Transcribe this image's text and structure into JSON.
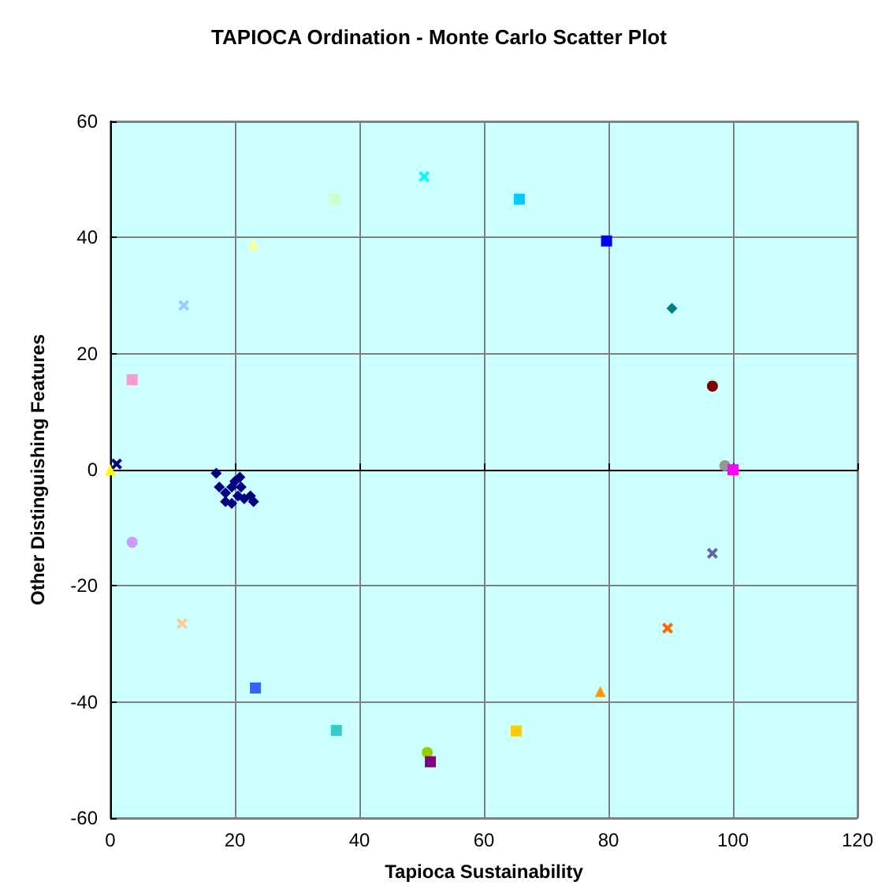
{
  "chart_data": {
    "type": "scatter",
    "title": "TAPIOCA Ordination - Monte Carlo Scatter Plot",
    "xlabel": "Tapioca Sustainability",
    "ylabel": "Other Distinguishing Features",
    "xlim": [
      0,
      120
    ],
    "xticks": [
      0,
      20,
      40,
      60,
      80,
      100,
      120
    ],
    "ylim": [
      -60,
      60
    ],
    "yticks": [
      -60,
      -40,
      -20,
      0,
      20,
      40,
      60
    ],
    "grid": true,
    "series": [
      {
        "color": "#000080",
        "marker": "diamond",
        "x": [
          17,
          17.5,
          18.5,
          19.5,
          20,
          20.5,
          21,
          21.5,
          22.5,
          23,
          18.5,
          19.5,
          20.8
        ],
        "values": [
          -0.6,
          -3,
          -4,
          -3,
          -2,
          -4.5,
          -3,
          -5,
          -4.5,
          -5.5,
          -5.5,
          -5.8,
          -1.3
        ]
      },
      {
        "color": "#ffff00",
        "marker": "triangle",
        "x": [
          0
        ],
        "values": [
          0
        ]
      },
      {
        "color": "#000080",
        "marker": "cross",
        "x": [
          1
        ],
        "values": [
          1
        ]
      },
      {
        "color": "#ff99cc",
        "marker": "square",
        "x": [
          3.5
        ],
        "values": [
          15.5
        ]
      },
      {
        "color": "#99ccff",
        "marker": "cross",
        "x": [
          11.8
        ],
        "values": [
          28.3
        ]
      },
      {
        "color": "#ffff99",
        "marker": "triangle",
        "x": [
          23
        ],
        "values": [
          38.8
        ]
      },
      {
        "color": "#ccffcc",
        "marker": "square",
        "x": [
          36
        ],
        "values": [
          46.6
        ]
      },
      {
        "color": "#00ffff",
        "marker": "cross",
        "x": [
          50.4
        ],
        "values": [
          50.5
        ]
      },
      {
        "color": "#00ccff",
        "marker": "square",
        "x": [
          65.7
        ],
        "values": [
          46.6
        ]
      },
      {
        "color": "#0000ff",
        "marker": "square",
        "x": [
          79.7
        ],
        "values": [
          39.4
        ]
      },
      {
        "color": "#008080",
        "marker": "diamond",
        "x": [
          90.2
        ],
        "values": [
          27.8
        ]
      },
      {
        "color": "#800000",
        "marker": "circle",
        "x": [
          96.7
        ],
        "values": [
          14.4
        ]
      },
      {
        "color": "#969696",
        "marker": "circle",
        "x": [
          98.7
        ],
        "values": [
          0.7
        ]
      },
      {
        "color": "#ff00ff",
        "marker": "square",
        "x": [
          100
        ],
        "values": [
          0
        ]
      },
      {
        "color": "#cc99ff",
        "marker": "circle",
        "x": [
          3.5
        ],
        "values": [
          -12.5
        ]
      },
      {
        "color": "#ffcc99",
        "marker": "cross",
        "x": [
          11.5
        ],
        "values": [
          -26.5
        ]
      },
      {
        "color": "#3366ff",
        "marker": "square",
        "x": [
          23.3
        ],
        "values": [
          -37.6
        ]
      },
      {
        "color": "#33cccc",
        "marker": "square",
        "x": [
          36.3
        ],
        "values": [
          -44.9
        ]
      },
      {
        "color": "#99cc00",
        "marker": "circle",
        "x": [
          50.9
        ],
        "values": [
          -48.7
        ]
      },
      {
        "color": "#800080",
        "marker": "square",
        "x": [
          51.4
        ],
        "values": [
          -50.3
        ]
      },
      {
        "color": "#666699",
        "marker": "cross",
        "x": [
          96.7
        ],
        "values": [
          -14.4
        ]
      },
      {
        "color": "#ff6600",
        "marker": "cross",
        "x": [
          89.5
        ],
        "values": [
          -27.3
        ]
      },
      {
        "color": "#ff9900",
        "marker": "triangle",
        "x": [
          78.7
        ],
        "values": [
          -38.2
        ]
      },
      {
        "color": "#ffcc00",
        "marker": "square",
        "x": [
          65.2
        ],
        "values": [
          -45
        ]
      }
    ]
  }
}
